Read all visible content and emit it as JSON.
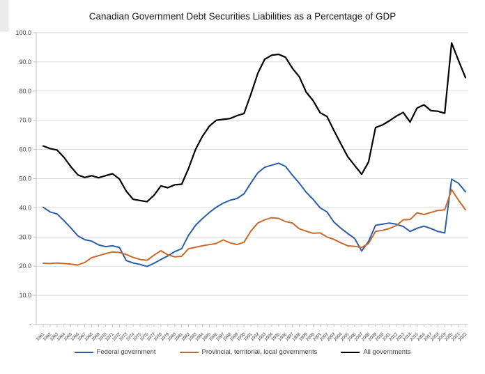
{
  "title": "Canadian Government Debt Securities Liabilities as a Percentage of GDP",
  "chart_data": {
    "type": "line",
    "title": "Canadian Government Debt Securities Liabilities as a Percentage of GDP",
    "xlabel": "",
    "ylabel": "",
    "grid": true,
    "legend_position": "bottom",
    "y_axis": {
      "range": [
        0,
        100
      ],
      "tick_interval": 10,
      "tick_labels": [
        "100.0",
        "90.0",
        "80.0",
        "70.0",
        "60.0",
        "50.0",
        "40.0",
        "30.0",
        "20.0",
        "10.0",
        "-"
      ]
    },
    "x": [
      "1961",
      "1962",
      "1963",
      "1964",
      "1965",
      "1966",
      "1967",
      "1968",
      "1969",
      "1970",
      "1971",
      "1972",
      "1973",
      "1974",
      "1975",
      "1976",
      "1977",
      "1978",
      "1979",
      "1980",
      "1981",
      "1982",
      "1983",
      "1984",
      "1985",
      "1986",
      "1987",
      "1988",
      "1989",
      "1990",
      "1991",
      "1992",
      "1993",
      "1994",
      "1995",
      "1996",
      "1997",
      "1998",
      "1999",
      "2000",
      "2001",
      "2002",
      "2003",
      "2004",
      "2005",
      "2006",
      "2007",
      "2008",
      "2009",
      "2010",
      "2011",
      "2012",
      "2013",
      "2014",
      "2015",
      "2016",
      "2017",
      "2018",
      "2019",
      "2020",
      "2021",
      "2022"
    ],
    "series": [
      {
        "name": "Federal government",
        "color": "#2a5caa",
        "values": [
          40.2,
          38.6,
          37.9,
          35.6,
          33.1,
          30.4,
          29.1,
          28.6,
          27.3,
          26.7,
          27.0,
          26.4,
          21.9,
          21.1,
          20.6,
          19.9,
          21.0,
          22.3,
          23.5,
          25.0,
          26.0,
          30.6,
          34.0,
          36.3,
          38.4,
          40.2,
          41.6,
          42.6,
          43.2,
          44.8,
          48.5,
          52.0,
          53.9,
          54.6,
          55.3,
          54.2,
          51.2,
          48.4,
          45.3,
          42.9,
          40.0,
          38.6,
          35.1,
          33.0,
          31.2,
          29.5,
          25.2,
          28.5,
          34.0,
          34.4,
          34.8,
          34.4,
          33.6,
          31.9,
          33.0,
          33.7,
          32.9,
          31.9,
          31.4,
          49.8,
          48.4,
          45.5
        ]
      },
      {
        "name": "Provincial, territorial, local governments",
        "color": "#c8682a",
        "values": [
          21.0,
          20.9,
          21.1,
          20.9,
          20.7,
          20.4,
          21.3,
          22.9,
          23.6,
          24.3,
          24.9,
          24.7,
          24.0,
          23.0,
          22.3,
          22.0,
          23.8,
          25.3,
          23.9,
          23.2,
          23.4,
          26.0,
          26.5,
          27.0,
          27.4,
          27.8,
          29.0,
          28.0,
          27.4,
          28.2,
          32.0,
          34.8,
          35.9,
          36.6,
          36.4,
          35.3,
          34.8,
          32.8,
          32.0,
          31.3,
          31.4,
          30.0,
          29.2,
          28.0,
          27.0,
          26.8,
          26.4,
          27.8,
          31.9,
          32.3,
          32.9,
          33.9,
          35.9,
          36.0,
          38.3,
          37.7,
          38.4,
          39.1,
          39.3,
          46.2,
          42.6,
          39.3
        ]
      },
      {
        "name": "All governments",
        "color": "#000000",
        "values": [
          61.2,
          60.3,
          59.8,
          57.3,
          54.1,
          51.3,
          50.4,
          51.0,
          50.3,
          51.0,
          51.7,
          49.9,
          45.7,
          42.9,
          42.5,
          42.1,
          44.3,
          47.5,
          46.9,
          47.9,
          48.1,
          53.5,
          60.0,
          64.5,
          68.0,
          70.0,
          70.3,
          70.6,
          71.6,
          72.3,
          78.9,
          86.1,
          90.9,
          92.3,
          92.6,
          91.6,
          87.8,
          84.9,
          79.6,
          76.7,
          72.6,
          71.3,
          66.5,
          61.9,
          57.5,
          54.5,
          51.5,
          55.7,
          67.5,
          68.4,
          69.8,
          71.4,
          72.7,
          69.4,
          74.2,
          75.3,
          73.3,
          73.1,
          72.4,
          96.5,
          90.4,
          84.6
        ]
      }
    ],
    "colors": {
      "gridline": "#d9d9d9",
      "axis": "#bfbfbf",
      "tick_label": "#404040"
    }
  }
}
